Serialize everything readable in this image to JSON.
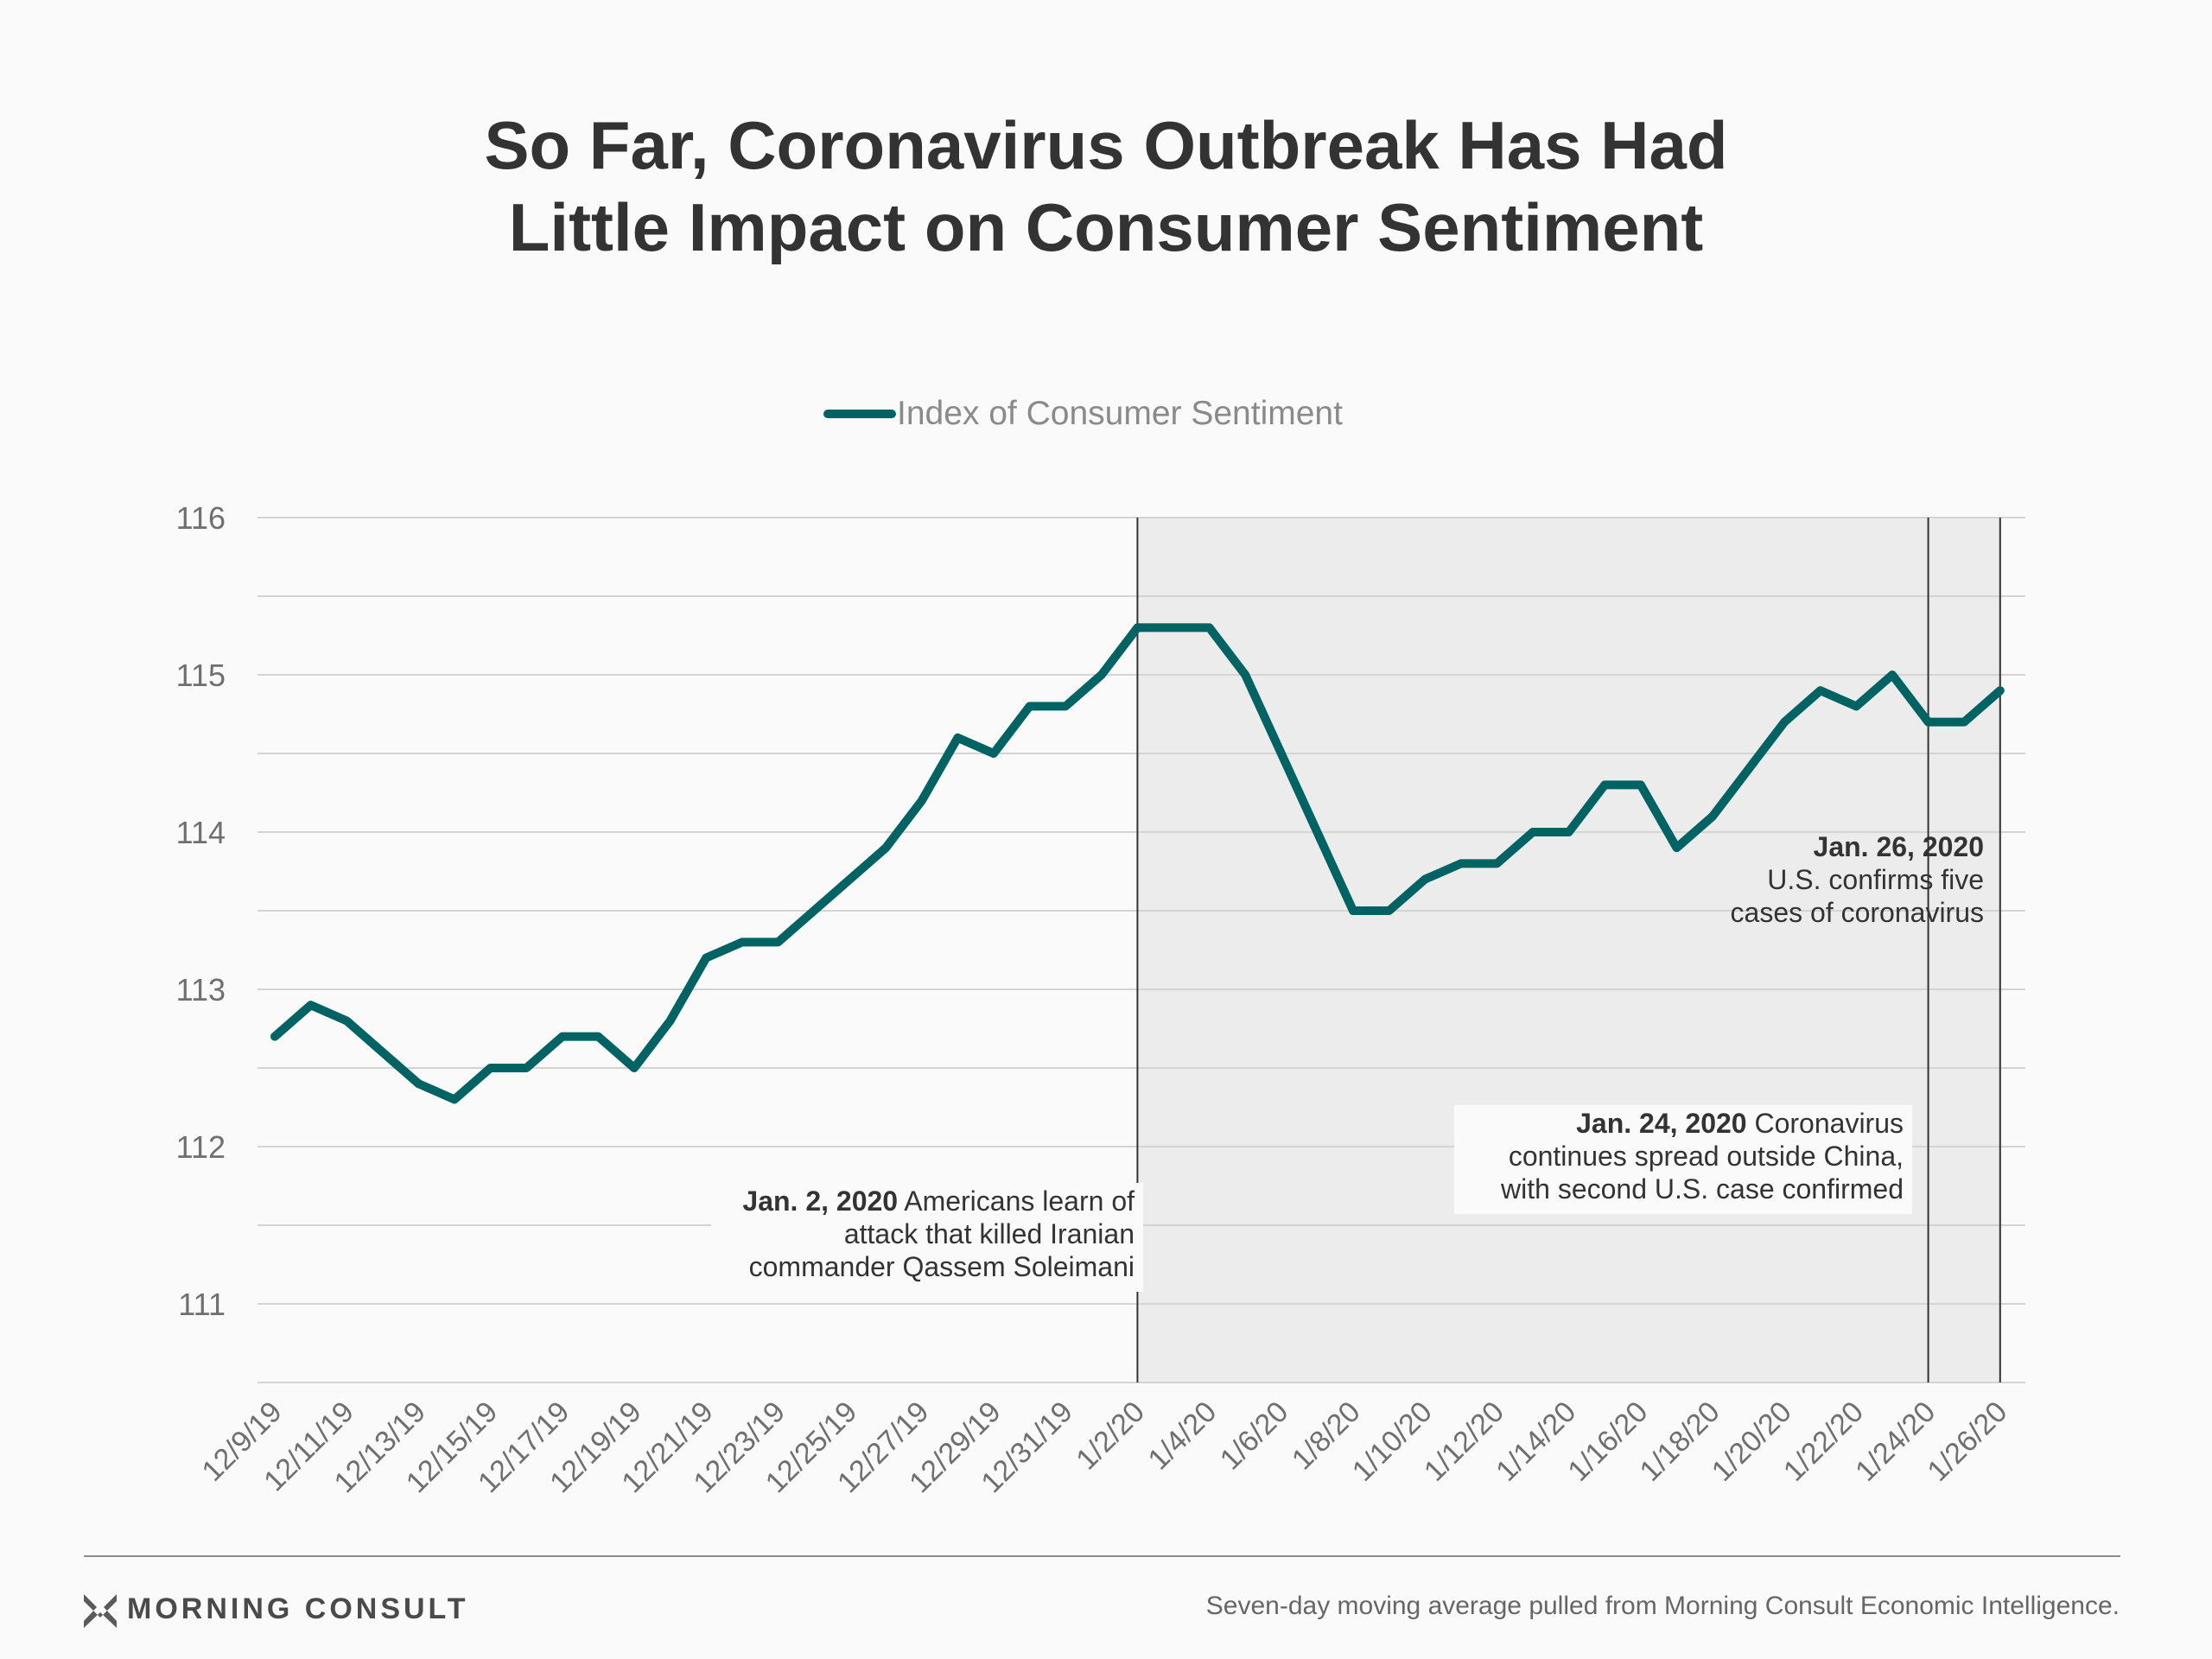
{
  "title_lines": [
    "So Far, Coronavirus Outbreak Has Had",
    "Little Impact on Consumer Sentiment"
  ],
  "legend": {
    "label": "Index of Consumer Sentiment",
    "color": "#006363"
  },
  "chart_data": {
    "type": "line",
    "series": [
      {
        "name": "Index of Consumer Sentiment",
        "color": "#006363",
        "x": [
          "12/9/19",
          "12/10/19",
          "12/11/19",
          "12/12/19",
          "12/13/19",
          "12/14/19",
          "12/15/19",
          "12/16/19",
          "12/17/19",
          "12/18/19",
          "12/19/19",
          "12/20/19",
          "12/21/19",
          "12/22/19",
          "12/23/19",
          "12/24/19",
          "12/25/19",
          "12/26/19",
          "12/27/19",
          "12/28/19",
          "12/29/19",
          "12/30/19",
          "12/31/19",
          "1/1/20",
          "1/2/20",
          "1/3/20",
          "1/4/20",
          "1/5/20",
          "1/6/20",
          "1/7/20",
          "1/8/20",
          "1/9/20",
          "1/10/20",
          "1/11/20",
          "1/12/20",
          "1/13/20",
          "1/14/20",
          "1/15/20",
          "1/16/20",
          "1/17/20",
          "1/18/20",
          "1/19/20",
          "1/20/20",
          "1/21/20",
          "1/22/20",
          "1/23/20",
          "1/24/20",
          "1/25/20",
          "1/26/20"
        ],
        "values": [
          112.7,
          112.9,
          112.8,
          112.6,
          112.4,
          112.3,
          112.5,
          112.5,
          112.7,
          112.7,
          112.5,
          112.8,
          113.2,
          113.3,
          113.3,
          113.5,
          113.7,
          113.9,
          114.2,
          114.6,
          114.5,
          114.8,
          114.8,
          115.0,
          115.3,
          115.3,
          115.3,
          115.0,
          114.5,
          114.0,
          113.5,
          113.5,
          113.7,
          113.8,
          113.8,
          114.0,
          114.0,
          114.3,
          114.3,
          113.9,
          114.1,
          114.4,
          114.7,
          114.9,
          114.8,
          115.0,
          114.7,
          114.7,
          114.9
        ]
      }
    ],
    "x_tick_labels": [
      "12/9/19",
      "12/11/19",
      "12/13/19",
      "12/15/19",
      "12/17/19",
      "12/19/19",
      "12/21/19",
      "12/23/19",
      "12/25/19",
      "12/27/19",
      "12/29/19",
      "12/31/19",
      "1/2/20",
      "1/4/20",
      "1/6/20",
      "1/8/20",
      "1/10/20",
      "1/12/20",
      "1/14/20",
      "1/16/20",
      "1/18/20",
      "1/20/20",
      "1/22/20",
      "1/24/20",
      "1/26/20"
    ],
    "y_tick_labels": [
      "116",
      "115",
      "114",
      "113",
      "112",
      "111"
    ],
    "ylim": [
      110.5,
      116
    ],
    "grid": true,
    "legend_position": "top-center",
    "shaded_region": {
      "from": "1/2/20",
      "to": "1/26/20",
      "color": "#ececec"
    },
    "annotations": [
      {
        "date": "1/2/20",
        "bold": "Jan. 2, 2020",
        "lines": [
          " Americans learn of",
          "attack that killed Iranian",
          "commander Qassem Soleimani"
        ]
      },
      {
        "date": "1/24/20",
        "bold": "Jan. 24, 2020",
        "lines": [
          " Coronavirus",
          "continues spread outside China,",
          "with second U.S. case confirmed"
        ]
      },
      {
        "date": "1/26/20",
        "bold": "Jan. 26, 2020",
        "lines": [
          "U.S. confirms five",
          "cases of coronavirus"
        ]
      }
    ]
  },
  "footer": {
    "logo_text": "MORNING CONSULT",
    "source": "Seven-day moving average pulled from Morning Consult Economic Intelligence."
  }
}
